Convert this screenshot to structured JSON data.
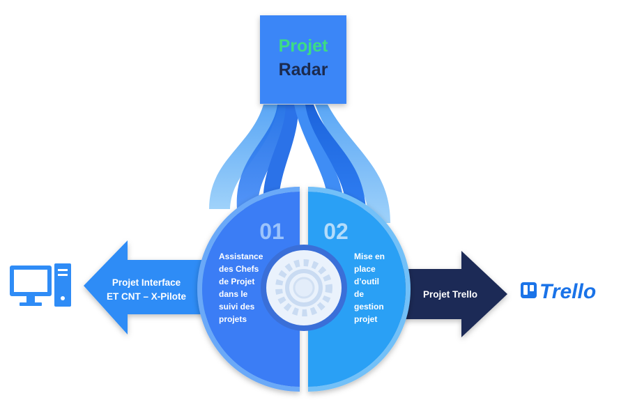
{
  "top_box": {
    "line1": "Projet",
    "line2": "Radar"
  },
  "left_half": {
    "number": "01",
    "lines": [
      "Assistance",
      "des Chefs",
      "de Projet",
      "dans le",
      "suivi des",
      "projets"
    ]
  },
  "right_half": {
    "number": "02",
    "lines": [
      "Mise en",
      "place",
      "d’outil",
      "de",
      "gestion",
      "projet"
    ]
  },
  "left_arrow": {
    "lines": [
      "Projet Interface",
      "ET CNT – X-Pilote"
    ]
  },
  "right_arrow": {
    "label": "Projet Trello"
  },
  "trello_logo": {
    "text": "Trello"
  },
  "icons": {
    "left": "computer-icon",
    "right": "trello-logo-icon",
    "center": "gear-icon"
  },
  "colors": {
    "top_box": "#3b86f7",
    "green_text": "#3ddc84",
    "navy_text": "#1b2a4e",
    "left_half": "#3a7df5",
    "right_half": "#2aa0f5",
    "left_arrow": "#2f8cf6",
    "right_arrow": "#1f2c57",
    "light_blue": "#7cc4f7"
  }
}
